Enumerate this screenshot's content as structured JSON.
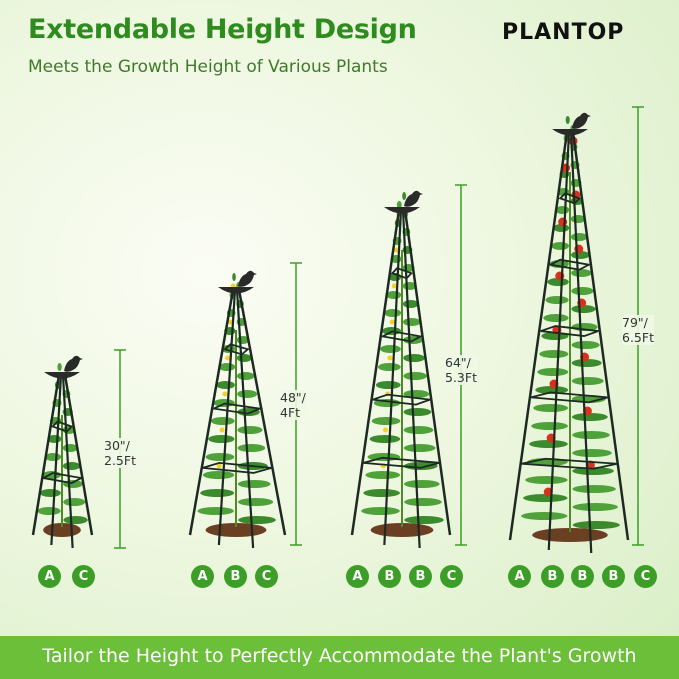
{
  "header": {
    "title": "Extendable Height Design",
    "subtitle": "Meets the Growth Height of Various Plants",
    "brand_logo": "PLANTOP"
  },
  "configurations": [
    {
      "height_label_in": "30\"/",
      "height_label_ft": "2.5Ft",
      "parts": [
        "A",
        "C"
      ]
    },
    {
      "height_label_in": "48\"/",
      "height_label_ft": "4Ft",
      "parts": [
        "A",
        "B",
        "C"
      ]
    },
    {
      "height_label_in": "64\"/",
      "height_label_ft": "5.3Ft",
      "parts": [
        "A",
        "B",
        "B",
        "C"
      ]
    },
    {
      "height_label_in": "79\"/",
      "height_label_ft": "6.5Ft",
      "parts": [
        "A",
        "B",
        "B",
        "B",
        "C"
      ]
    }
  ],
  "footer": {
    "banner_text": "Tailor the Height to Perfectly Accommodate the Plant's Growth"
  },
  "colors": {
    "title_green": "#2e8b1e",
    "banner_green": "#6cbf38",
    "badge_green": "#3c9e26",
    "tomato_red": "#d8321c"
  }
}
